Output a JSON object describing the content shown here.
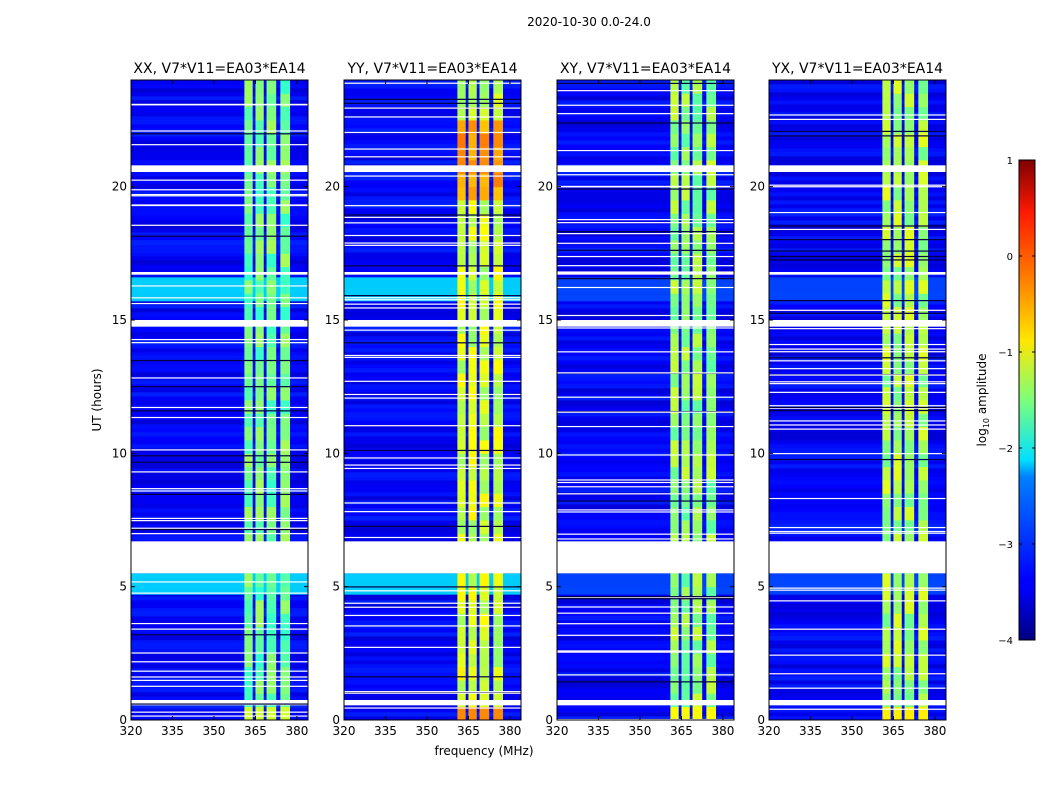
{
  "figure": {
    "suptitle": "2020-10-30 0.0-24.0",
    "xlabel": "frequency (MHz)",
    "ylabel": "UT (hours)"
  },
  "colorbar": {
    "label_prefix": "log",
    "label_sub": "10",
    "label_suffix": " amplitude",
    "colormap": "jet",
    "range": [
      -4,
      1
    ],
    "ticks": [
      {
        "value": 1,
        "label": "1"
      },
      {
        "value": 0,
        "label": "0"
      },
      {
        "value": -1,
        "label": "−1"
      },
      {
        "value": -2,
        "label": "−2"
      },
      {
        "value": -3,
        "label": "−3"
      },
      {
        "value": -4,
        "label": "−4"
      }
    ]
  },
  "chart_data": {
    "type": "heatmap",
    "description_axes": {
      "x": "frequency (MHz)",
      "y": "UT (hours)"
    },
    "xlim": [
      320,
      384
    ],
    "ylim": [
      0,
      24
    ],
    "xticks": [
      {
        "value": 320,
        "label": "320"
      },
      {
        "value": 335,
        "label": "335"
      },
      {
        "value": 350,
        "label": "350"
      },
      {
        "value": 365,
        "label": "365"
      },
      {
        "value": 380,
        "label": "380"
      }
    ],
    "yticks": [
      {
        "value": 0,
        "label": "0"
      },
      {
        "value": 5,
        "label": "5"
      },
      {
        "value": 10,
        "label": "10"
      },
      {
        "value": 15,
        "label": "15"
      },
      {
        "value": 20,
        "label": "20"
      }
    ],
    "background_level": -3.4,
    "band_range_mhz": [
      360.5,
      380.5
    ],
    "band_channels_mhz": [
      [
        361,
        364
      ],
      [
        365,
        368
      ],
      [
        369,
        372.5
      ],
      [
        374,
        377.5
      ]
    ],
    "gaps_hours": [
      [
        5.5,
        6.7
      ],
      [
        20.55,
        20.8
      ],
      [
        16.7,
        16.8
      ],
      [
        14.75,
        15.0
      ],
      [
        0.55,
        0.75
      ]
    ],
    "panels": [
      {
        "title": "XX, V7*V11=EA03*EA14",
        "band_level": -1.6,
        "strong_level": -1.2,
        "rfi_level": -2.2
      },
      {
        "title": "YY, V7*V11=EA03*EA14",
        "band_level": -1.1,
        "strong_level": -0.4,
        "rfi_level": -2.2
      },
      {
        "title": "XY, V7*V11=EA03*EA14",
        "band_level": -1.4,
        "strong_level": -1.0,
        "rfi_level": -3.0
      },
      {
        "title": "YX, V7*V11=EA03*EA14",
        "band_level": -1.3,
        "strong_level": -0.9,
        "rfi_level": -3.0
      }
    ]
  }
}
